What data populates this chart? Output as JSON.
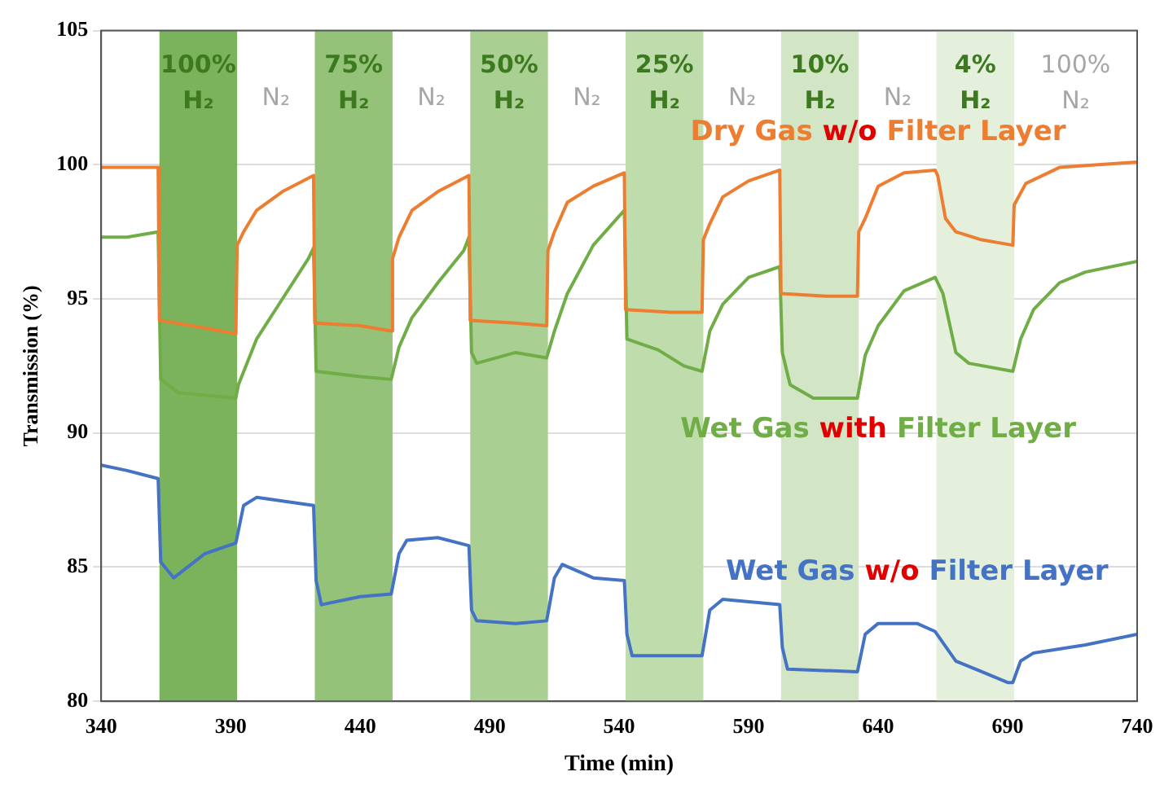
{
  "chart_data": {
    "type": "line",
    "xlabel": "Time (min)",
    "ylabel": "Transmission (%)",
    "xlim": [
      340,
      740
    ],
    "xticks": [
      340,
      390,
      440,
      490,
      540,
      590,
      640,
      690,
      740
    ],
    "ylim": [
      80,
      105
    ],
    "yticks": [
      80,
      85,
      90,
      95,
      100,
      105
    ],
    "grid": "y",
    "legend": false,
    "marker": "none",
    "line_style": "solid",
    "series": [
      {
        "name": "Dry Gas w/o Filter Layer",
        "color": "#ed7d31",
        "x": [
          340,
          350,
          362,
          362.5,
          375,
          392,
          392.5,
          395,
          400,
          410,
          422,
          422.5,
          440,
          452,
          452.5,
          455,
          460,
          470,
          482,
          482.5,
          500,
          512,
          512.5,
          515,
          520,
          530,
          542,
          542.5,
          560,
          572,
          572.5,
          575,
          580,
          590,
          602,
          602.5,
          620,
          632,
          632.5,
          635,
          640,
          650,
          662,
          663,
          666,
          670,
          680,
          692,
          692.5,
          697,
          710,
          725,
          740
        ],
        "values": [
          99.9,
          99.9,
          99.9,
          94.2,
          94.0,
          93.7,
          97.0,
          97.5,
          98.3,
          99.0,
          99.6,
          94.1,
          94.0,
          93.8,
          96.5,
          97.3,
          98.3,
          99.0,
          99.6,
          94.2,
          94.1,
          94.0,
          96.8,
          97.5,
          98.6,
          99.2,
          99.7,
          94.6,
          94.5,
          94.5,
          97.2,
          97.8,
          98.8,
          99.4,
          99.8,
          95.2,
          95.1,
          95.1,
          97.5,
          98.0,
          99.2,
          99.7,
          99.8,
          99.6,
          98.0,
          97.5,
          97.2,
          97.0,
          98.5,
          99.3,
          99.9,
          100.0,
          100.1
        ]
      },
      {
        "name": "Wet Gas with Filter Layer",
        "color": "#70ad47",
        "x": [
          340,
          350,
          362,
          363,
          370,
          392,
          393,
          400,
          410,
          420,
          422,
          423,
          440,
          452,
          455,
          460,
          470,
          480,
          482,
          483,
          485,
          500,
          512,
          515,
          520,
          530,
          542,
          543,
          555,
          565,
          572,
          575,
          580,
          590,
          602,
          603,
          606,
          615,
          632,
          635,
          640,
          650,
          662,
          665,
          670,
          675,
          692,
          695,
          700,
          710,
          720,
          740
        ],
        "values": [
          97.3,
          97.3,
          97.5,
          92.0,
          91.5,
          91.3,
          91.8,
          93.5,
          95.0,
          96.5,
          96.9,
          92.3,
          92.1,
          92.0,
          93.2,
          94.3,
          95.6,
          96.8,
          97.3,
          93.0,
          92.6,
          93.0,
          92.8,
          93.8,
          95.2,
          97.0,
          98.3,
          93.5,
          93.1,
          92.5,
          92.3,
          93.8,
          94.8,
          95.8,
          96.2,
          93.0,
          91.8,
          91.3,
          91.3,
          92.9,
          94.0,
          95.3,
          95.8,
          95.2,
          93.0,
          92.6,
          92.3,
          93.5,
          94.6,
          95.6,
          96.0,
          96.4
        ]
      },
      {
        "name": "Wet Gas w/o Filter Layer",
        "color": "#4472c4",
        "x": [
          340,
          350,
          362,
          363,
          368,
          380,
          392,
          395,
          400,
          422,
          423,
          425,
          440,
          452,
          455,
          458,
          470,
          482,
          483,
          485,
          500,
          512,
          515,
          518,
          530,
          542,
          543,
          545,
          572,
          575,
          580,
          602,
          603,
          605,
          632,
          635,
          640,
          655,
          662,
          670,
          680,
          690,
          692,
          695,
          700,
          720,
          740
        ],
        "values": [
          88.8,
          88.6,
          88.3,
          85.2,
          84.6,
          85.5,
          85.9,
          87.3,
          87.6,
          87.3,
          84.5,
          83.6,
          83.9,
          84.0,
          85.5,
          86.0,
          86.1,
          85.8,
          83.4,
          83.0,
          82.9,
          83.0,
          84.6,
          85.1,
          84.6,
          84.5,
          82.5,
          81.7,
          81.7,
          83.4,
          83.8,
          83.6,
          82.0,
          81.2,
          81.1,
          82.5,
          82.9,
          82.9,
          82.6,
          81.5,
          81.1,
          80.7,
          80.7,
          81.5,
          81.8,
          82.1,
          82.5
        ]
      }
    ],
    "bands": [
      {
        "axis": "x",
        "from": 362.5,
        "to": 392.5,
        "label": "100% H₂",
        "color": "#7ab35c"
      },
      {
        "axis": "x",
        "from": 422.5,
        "to": 452.5,
        "label": "75% H₂",
        "color": "#93c278"
      },
      {
        "axis": "x",
        "from": 482.5,
        "to": 512.5,
        "label": "50% H₂",
        "color": "#a9cf93"
      },
      {
        "axis": "x",
        "from": 542.5,
        "to": 572.5,
        "label": "25% H₂",
        "color": "#bfdcad"
      },
      {
        "axis": "x",
        "from": 602.5,
        "to": 632.5,
        "label": "10% H₂",
        "color": "#d2e6c5"
      },
      {
        "axis": "x",
        "from": 662.5,
        "to": 692.5,
        "label": "4% H₂",
        "color": "#e4f0dc"
      }
    ],
    "annotations": [
      "N₂",
      "N₂",
      "N₂",
      "N₂",
      "N₂",
      "100% N₂"
    ]
  }
}
